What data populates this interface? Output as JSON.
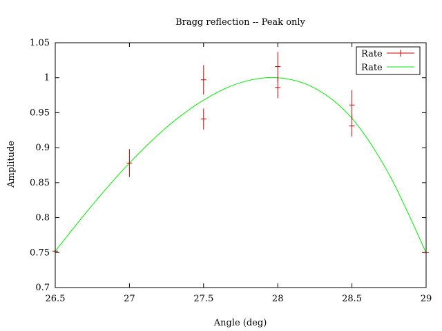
{
  "chart_data": {
    "type": "scatter",
    "title": "Bragg reflection -- Peak only",
    "xlabel": "Angle (deg)",
    "ylabel": "Amplitude",
    "xlim": [
      26.5,
      29
    ],
    "ylim": [
      0.7,
      1.05
    ],
    "xticks": [
      "26.5",
      "27",
      "27.5",
      "28",
      "28.5",
      "29"
    ],
    "yticks": [
      "0.7",
      "0.75",
      "0.8",
      "0.85",
      "0.9",
      "0.95",
      "1",
      "1.05"
    ],
    "grid": false,
    "legend_position": "top-right",
    "series": [
      {
        "name": "Rate",
        "kind": "points-with-errorbars",
        "color": "#cc0000",
        "points": [
          {
            "x": 26.5,
            "y": 0.752,
            "err": 0.0
          },
          {
            "x": 27.0,
            "y": 0.878,
            "err": 0.02
          },
          {
            "x": 27.5,
            "y": 0.997,
            "err": 0.021
          },
          {
            "x": 27.5,
            "y": 0.941,
            "err": 0.015
          },
          {
            "x": 28.0,
            "y": 1.016,
            "err": 0.021
          },
          {
            "x": 28.0,
            "y": 0.986,
            "err": 0.015
          },
          {
            "x": 28.5,
            "y": 0.961,
            "err": 0.021
          },
          {
            "x": 28.5,
            "y": 0.931,
            "err": 0.015
          },
          {
            "x": 29.0,
            "y": 0.75,
            "err": 0.0
          }
        ]
      },
      {
        "name": "Rate",
        "kind": "line",
        "color": "#00ee00",
        "points": [
          {
            "x": 26.5,
            "y": 0.752
          },
          {
            "x": 26.75,
            "y": 0.818
          },
          {
            "x": 27.0,
            "y": 0.878
          },
          {
            "x": 27.25,
            "y": 0.929
          },
          {
            "x": 27.5,
            "y": 0.968
          },
          {
            "x": 27.75,
            "y": 0.993
          },
          {
            "x": 28.0,
            "y": 1.0
          },
          {
            "x": 28.25,
            "y": 0.985
          },
          {
            "x": 28.5,
            "y": 0.942
          },
          {
            "x": 28.75,
            "y": 0.862
          },
          {
            "x": 29.0,
            "y": 0.75
          }
        ]
      }
    ]
  }
}
